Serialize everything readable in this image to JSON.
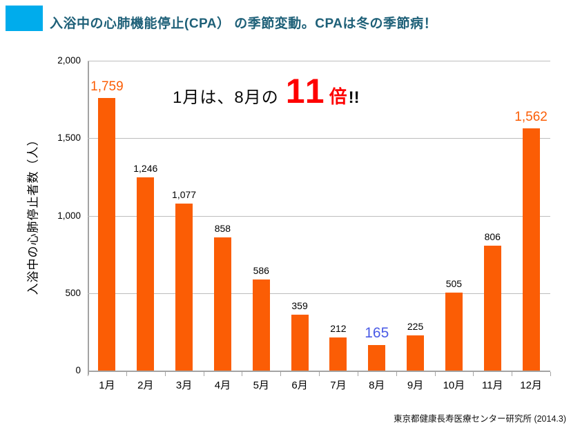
{
  "header": {
    "title": "入浴中の心肺機能停止(CPA） の季節変動。CPAは冬の季節病！",
    "title_color": "#1e6078",
    "bullet_color": "#00acec"
  },
  "annotation": {
    "prefix": "1月は、8月の",
    "multiplier": "11",
    "unit": "倍",
    "suffix": "!!",
    "accent_color": "#fe0000"
  },
  "chart_data": {
    "type": "bar",
    "title": "入浴中の心肺機能停止(CPA）の季節変動",
    "categories": [
      "1月",
      "2月",
      "3月",
      "4月",
      "5月",
      "6月",
      "7月",
      "8月",
      "9月",
      "10月",
      "11月",
      "12月"
    ],
    "values": [
      1759,
      1246,
      1077,
      858,
      586,
      359,
      212,
      165,
      225,
      505,
      806,
      1562
    ],
    "value_labels": [
      "1,759",
      "1,246",
      "1,077",
      "858",
      "586",
      "359",
      "212",
      "165",
      "225",
      "505",
      "806",
      "1,562"
    ],
    "value_label_emphasis": [
      "high",
      "none",
      "none",
      "none",
      "none",
      "none",
      "none",
      "low",
      "none",
      "none",
      "none",
      "high"
    ],
    "emphasis_colors": {
      "high": "#fb5d05",
      "low": "#4a5be6",
      "none": "#000000"
    },
    "xlabel": "",
    "ylabel": "入浴中の心肺停止者数（人）",
    "ylim": [
      0,
      2000
    ],
    "yticks": [
      0,
      500,
      1000,
      1500,
      2000
    ],
    "ytick_labels": [
      "0",
      "500",
      "1,000",
      "1,500",
      "2,000"
    ],
    "bar_color": "#fb5d05",
    "grid": "horizontal",
    "legend": "none"
  },
  "source": "東京都健康長寿医療センター研究所 (2014.3)"
}
